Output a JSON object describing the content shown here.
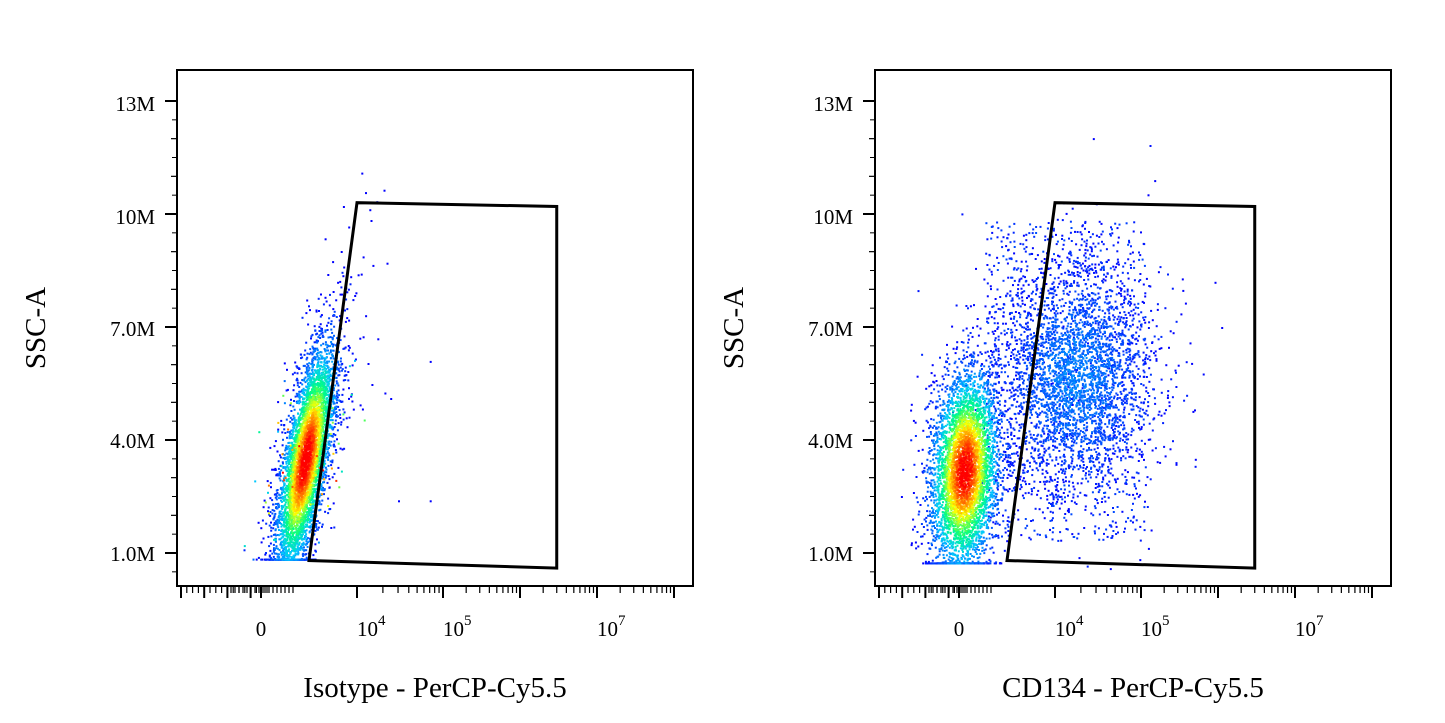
{
  "chart_data": [
    {
      "type": "scatter",
      "subtype": "flow-cytometry density dot plot",
      "xlabel": "Isotype - PerCP-Cy5.5",
      "ylabel": "SSC-A",
      "x_scale": "biexponential",
      "x_ticks": [
        "0",
        "10^4",
        "10^5",
        "10^7"
      ],
      "y_ticks": [
        "1.0M",
        "4.0M",
        "7.0M",
        "10M",
        "13M"
      ],
      "ylim": [
        0,
        14000000
      ],
      "gate": {
        "shape": "polygon",
        "vertices": [
          [
            2500,
            800000
          ],
          [
            10000,
            10300000
          ],
          [
            3000000,
            10200000
          ],
          [
            3000000,
            600000
          ]
        ]
      },
      "population": {
        "x_center": 900,
        "y_center": 3500000,
        "events_in_gate": "few",
        "density_colors": [
          "#0000ff",
          "#00c8ff",
          "#00ff80",
          "#ffff00",
          "#ff0000"
        ]
      },
      "outliers": [
        [
          70000,
          6100000
        ],
        [
          30000,
          2400000
        ],
        [
          70000,
          2400000
        ]
      ]
    },
    {
      "type": "scatter",
      "subtype": "flow-cytometry density dot plot",
      "xlabel": "CD134 - PerCP-Cy5.5",
      "ylabel": "SSC-A",
      "x_scale": "biexponential",
      "x_ticks": [
        "0",
        "10^4",
        "10^5",
        "10^7"
      ],
      "y_ticks": [
        "1.0M",
        "4.0M",
        "7.0M",
        "10M",
        "13M"
      ],
      "ylim": [
        0,
        14000000
      ],
      "gate": {
        "shape": "polygon",
        "vertices": [
          [
            2500,
            800000
          ],
          [
            10000,
            10300000
          ],
          [
            3000000,
            10200000
          ],
          [
            3000000,
            600000
          ]
        ]
      },
      "population": {
        "x_center": 200,
        "y_center": 3200000,
        "second_cluster_x": 40000,
        "second_cluster_y": 5500000,
        "density_colors": [
          "#0000ff",
          "#00c8ff",
          "#00ff80",
          "#ffff00",
          "#ff0000"
        ]
      },
      "outliers": [
        [
          300000,
          6000000
        ],
        [
          500000,
          3500000
        ],
        [
          900000,
          8200000
        ],
        [
          1100000,
          7000000
        ]
      ]
    }
  ]
}
